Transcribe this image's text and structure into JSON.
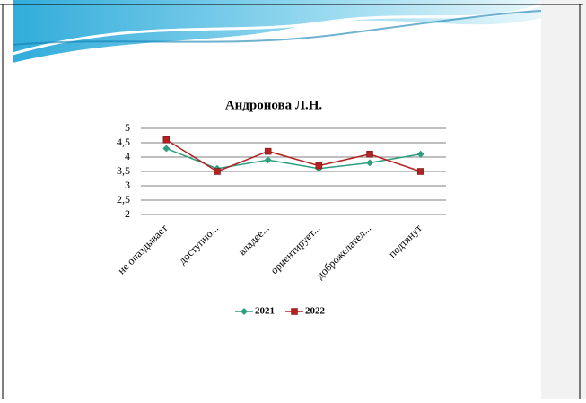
{
  "chart_data": {
    "type": "line",
    "title": "Андронова Л.Н.",
    "categories": [
      "не опаздывает",
      "доступно...",
      "владее...",
      "ориентирует...",
      "доброжелател...",
      "подтянут"
    ],
    "series": [
      {
        "name": "2021",
        "color": "#2e9e80",
        "values": [
          4.3,
          3.6,
          3.9,
          3.6,
          3.8,
          4.1
        ]
      },
      {
        "name": "2022",
        "color": "#b22222",
        "values": [
          4.6,
          3.5,
          4.2,
          3.7,
          4.1,
          3.5
        ]
      }
    ],
    "ylim": [
      2,
      5
    ],
    "yticks": [
      2,
      {
        "value": 2.5,
        "label": "2,5"
      },
      3,
      {
        "value": 3.5,
        "label": "3,5"
      },
      4,
      {
        "value": 4.5,
        "label": "4,5"
      },
      5
    ],
    "grid": true,
    "legend": "bottom"
  }
}
